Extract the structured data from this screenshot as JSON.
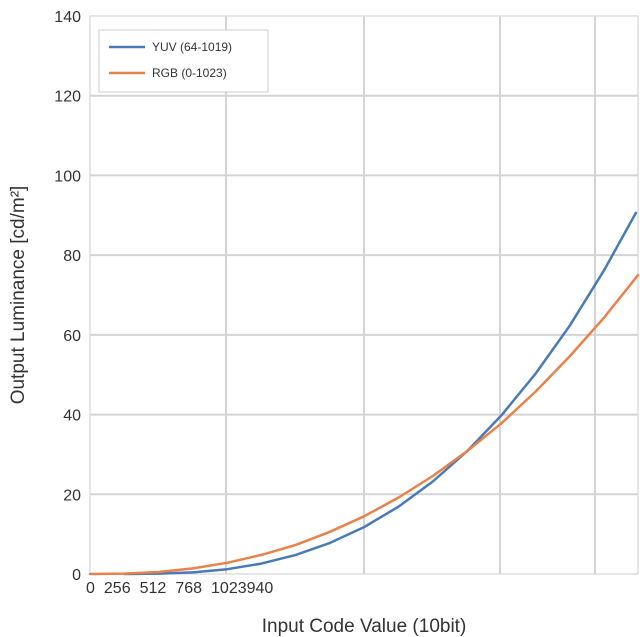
{
  "chart_data": {
    "type": "line",
    "xlabel": "Input Code Value (10bit)",
    "ylabel": "Output Luminance [cd/m²]",
    "xlim": [
      0,
      1023
    ],
    "ylim": [
      0,
      140
    ],
    "x_tick_labels": [
      "0",
      "256",
      "512",
      "768",
      "1023",
      "940"
    ],
    "y_ticks": [
      0,
      20,
      40,
      60,
      80,
      100,
      120,
      140
    ],
    "grid": true,
    "legend_position": "top-left",
    "series": [
      {
        "name": "YUV (64-1019)",
        "color": "#4a7ab5",
        "x": [
          64,
          128,
          192,
          256,
          320,
          384,
          448,
          512,
          576,
          640,
          704,
          768,
          832,
          896,
          960,
          1019
        ],
        "y": [
          0.0,
          0.1,
          0.4,
          1.2,
          2.6,
          4.8,
          7.8,
          11.8,
          16.9,
          23.2,
          30.8,
          39.8,
          50.3,
          62.4,
          76.3,
          90.6
        ]
      },
      {
        "name": "RGB (0-1023)",
        "color": "#e8824a",
        "x": [
          0,
          64,
          128,
          192,
          256,
          320,
          384,
          448,
          512,
          576,
          640,
          704,
          768,
          832,
          896,
          960,
          1023
        ],
        "y": [
          0.0,
          0.1,
          0.5,
          1.4,
          2.8,
          4.8,
          7.3,
          10.6,
          14.5,
          19.2,
          24.6,
          30.8,
          37.8,
          45.8,
          54.7,
          64.4,
          75.0
        ]
      }
    ]
  }
}
